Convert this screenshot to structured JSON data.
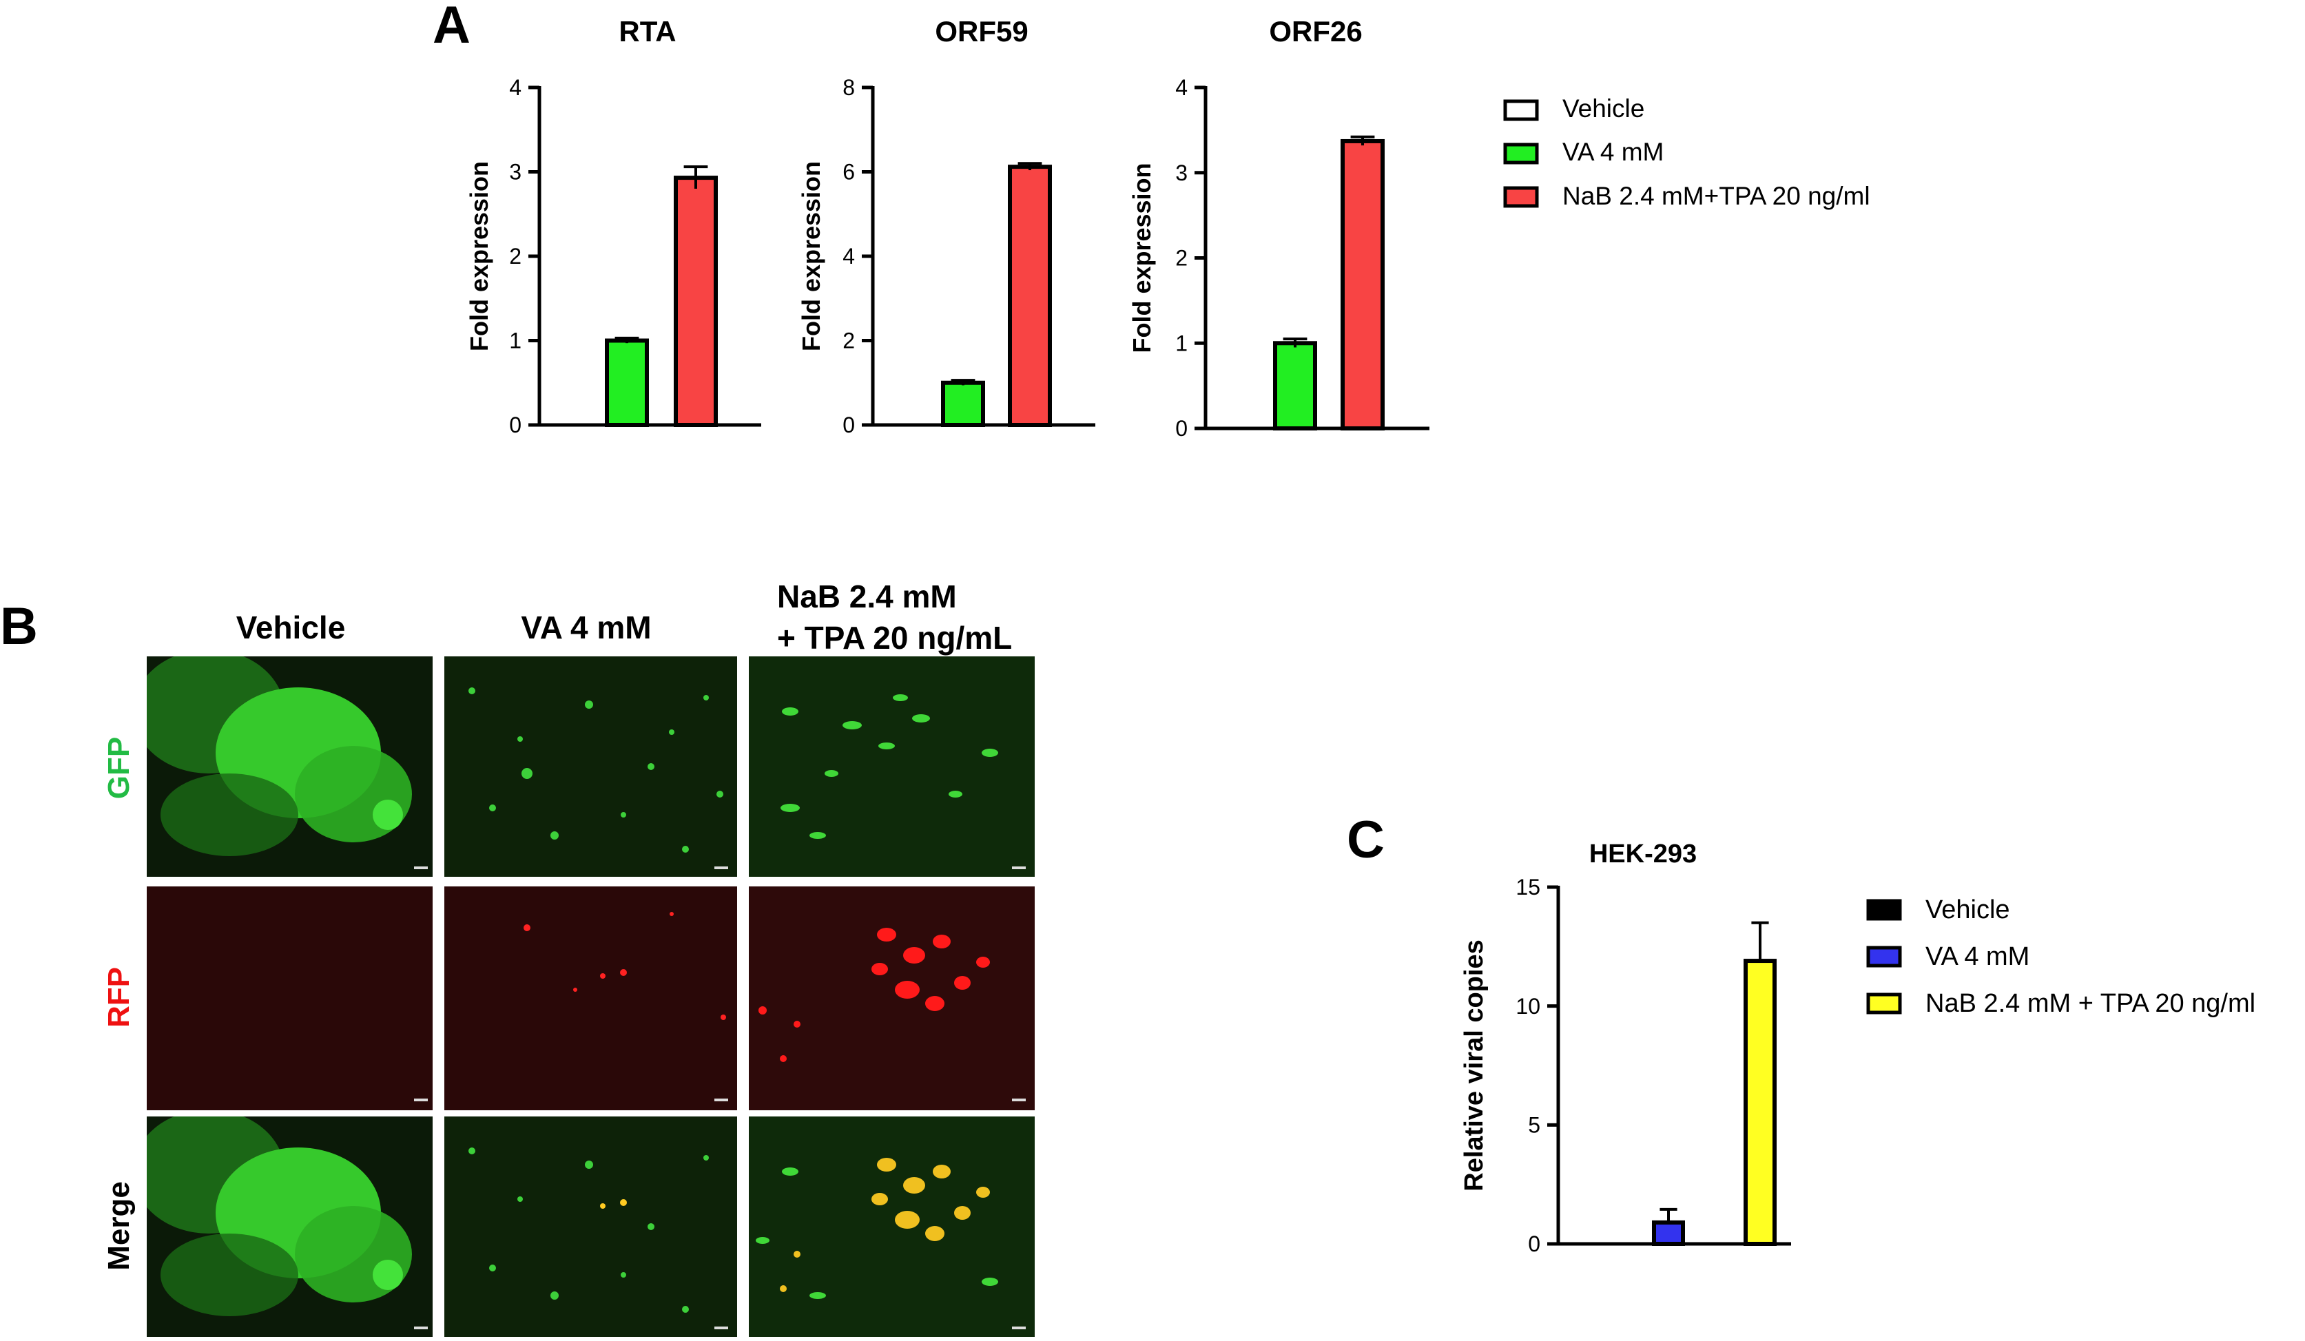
{
  "panel_letters": {
    "a": "A",
    "b": "B",
    "c": "C"
  },
  "colors": {
    "vehicle": "#ffffff",
    "va": "#22ee22",
    "nab": "#f84444",
    "c_vehicle": "#000000",
    "c_va": "#3333ee",
    "c_nab": "#ffff22",
    "gfp_label": "#22bb44",
    "rfp_label": "#ee1111"
  },
  "panel_a": {
    "legend": [
      {
        "label": "Vehicle",
        "color_key": "vehicle"
      },
      {
        "label": "VA 4 mM",
        "color_key": "va"
      },
      {
        "label": "NaB 2.4 mM+TPA 20 ng/ml",
        "color_key": "nab"
      }
    ]
  },
  "panel_b": {
    "columns": [
      "Vehicle",
      "VA 4 mM",
      "NaB 2.4 mM",
      "+ TPA 20 ng/mL"
    ],
    "rows": [
      "GFP",
      "RFP",
      "Merge"
    ]
  },
  "panel_c": {
    "legend": [
      {
        "label": "Vehicle",
        "color_key": "c_vehicle"
      },
      {
        "label": "VA 4 mM",
        "color_key": "c_va"
      },
      {
        "label": "NaB 2.4 mM + TPA 20 ng/ml",
        "color_key": "c_nab"
      }
    ]
  },
  "chart_data": [
    {
      "type": "bar",
      "title": "RTA",
      "xlabel": "",
      "ylabel": "Fold expression",
      "ylim": [
        0,
        4
      ],
      "yticks": [
        0,
        1,
        2,
        3,
        4
      ],
      "categories": [
        "Vehicle",
        "VA 4 mM",
        "NaB 2.4 mM+TPA 20 ng/ml"
      ],
      "values": [
        0,
        1.0,
        2.93
      ],
      "errors": [
        0,
        0.03,
        0.13
      ],
      "colors": [
        "vehicle",
        "va",
        "nab"
      ],
      "legend": "right"
    },
    {
      "type": "bar",
      "title": "ORF59",
      "xlabel": "",
      "ylabel": "Fold expression",
      "ylim": [
        0,
        8
      ],
      "yticks": [
        0,
        2,
        4,
        6,
        8
      ],
      "categories": [
        "Vehicle",
        "VA 4 mM",
        "NaB 2.4 mM+TPA 20 ng/ml"
      ],
      "values": [
        0,
        1.0,
        6.12
      ],
      "errors": [
        0,
        0.06,
        0.08
      ],
      "colors": [
        "vehicle",
        "va",
        "nab"
      ],
      "legend": "right"
    },
    {
      "type": "bar",
      "title": "ORF26",
      "xlabel": "",
      "ylabel": "Fold expression",
      "ylim": [
        0,
        4
      ],
      "yticks": [
        0,
        1,
        2,
        3,
        4
      ],
      "categories": [
        "Vehicle",
        "VA 4 mM",
        "NaB 2.4 mM+TPA 20 ng/ml"
      ],
      "values": [
        0,
        1.0,
        3.37
      ],
      "errors": [
        0,
        0.05,
        0.05
      ],
      "colors": [
        "vehicle",
        "va",
        "nab"
      ],
      "legend": "right"
    },
    {
      "type": "bar",
      "title": "HEK-293",
      "xlabel": "",
      "ylabel": "Relative viral copies",
      "ylim": [
        0,
        15
      ],
      "yticks": [
        0,
        5,
        10,
        15
      ],
      "categories": [
        "Vehicle",
        "VA 4 mM",
        "NaB 2.4 mM + TPA 20 ng/ml"
      ],
      "values": [
        0,
        0.9,
        11.9
      ],
      "errors": [
        0,
        0.55,
        1.6
      ],
      "colors": [
        "c_vehicle",
        "c_va",
        "c_nab"
      ],
      "legend": "right"
    }
  ]
}
